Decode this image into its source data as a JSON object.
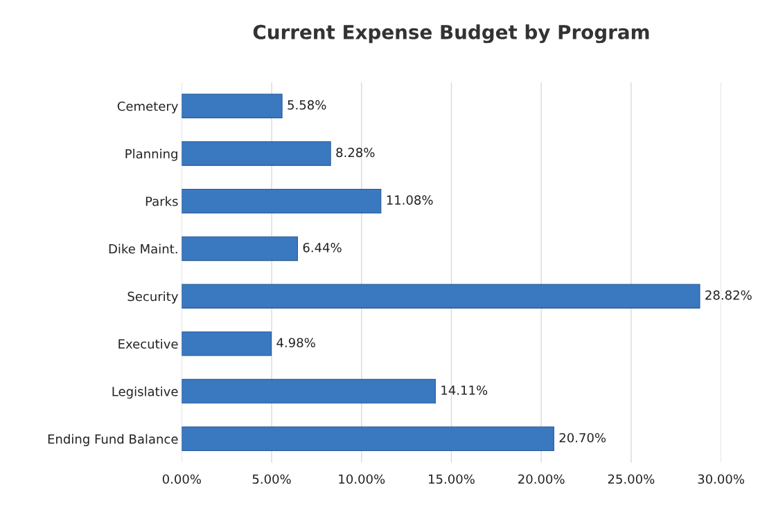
{
  "chart_data": {
    "type": "bar",
    "orientation": "horizontal",
    "title": "Current Expense Budget by Program",
    "categories": [
      "Cemetery",
      "Planning",
      "Parks",
      "Dike Maint.",
      "Security",
      "Executive",
      "Legislative",
      "Ending Fund Balance"
    ],
    "values": [
      5.58,
      8.28,
      11.08,
      6.44,
      28.82,
      4.98,
      14.11,
      20.7
    ],
    "value_labels": [
      "5.58%",
      "8.28%",
      "11.08%",
      "6.44%",
      "28.82%",
      "4.98%",
      "14.11%",
      "20.70%"
    ],
    "color": "#3a78c0",
    "xlim": [
      0,
      30
    ],
    "xticks": [
      {
        "value": 0,
        "label": "0.00%"
      },
      {
        "value": 5,
        "label": "5.00%"
      },
      {
        "value": 10,
        "label": "10.00%"
      },
      {
        "value": 15,
        "label": "15.00%"
      },
      {
        "value": 20,
        "label": "20.00%"
      },
      {
        "value": 25,
        "label": "25.00%"
      },
      {
        "value": 30,
        "label": "30.00%"
      }
    ],
    "grid": "x",
    "legend": false
  }
}
